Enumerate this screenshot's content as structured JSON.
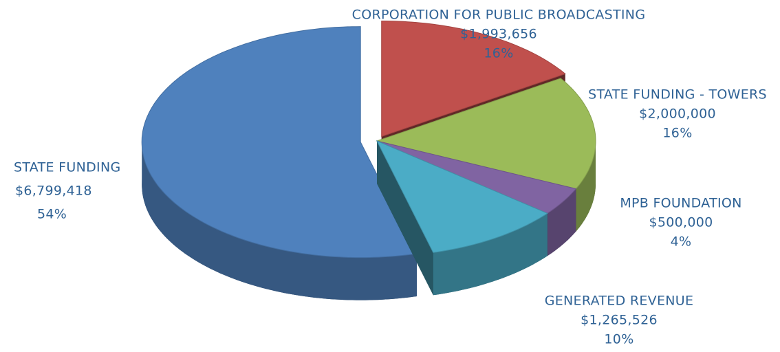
{
  "chart_data": {
    "type": "pie",
    "categories": [
      "CORPORATION FOR PUBLIC BROADCASTING",
      "STATE FUNDING - TOWERS",
      "MPB FOUNDATION",
      "GENERATED REVENUE",
      "STATE FUNDING"
    ],
    "values": [
      1993656,
      2000000,
      500000,
      1265526,
      6799418
    ],
    "value_labels": [
      "$1,993,656",
      "$2,000,000",
      "$500,000",
      "$1,265,526",
      "$6,799,418"
    ],
    "percents": [
      16,
      16,
      4,
      10,
      54
    ],
    "percent_labels": [
      "16%",
      "16%",
      "4%",
      "10%",
      "54%"
    ],
    "colors": [
      "#c0504d",
      "#9bbb59",
      "#8064a2",
      "#4bacc6",
      "#4f81bd"
    ]
  }
}
